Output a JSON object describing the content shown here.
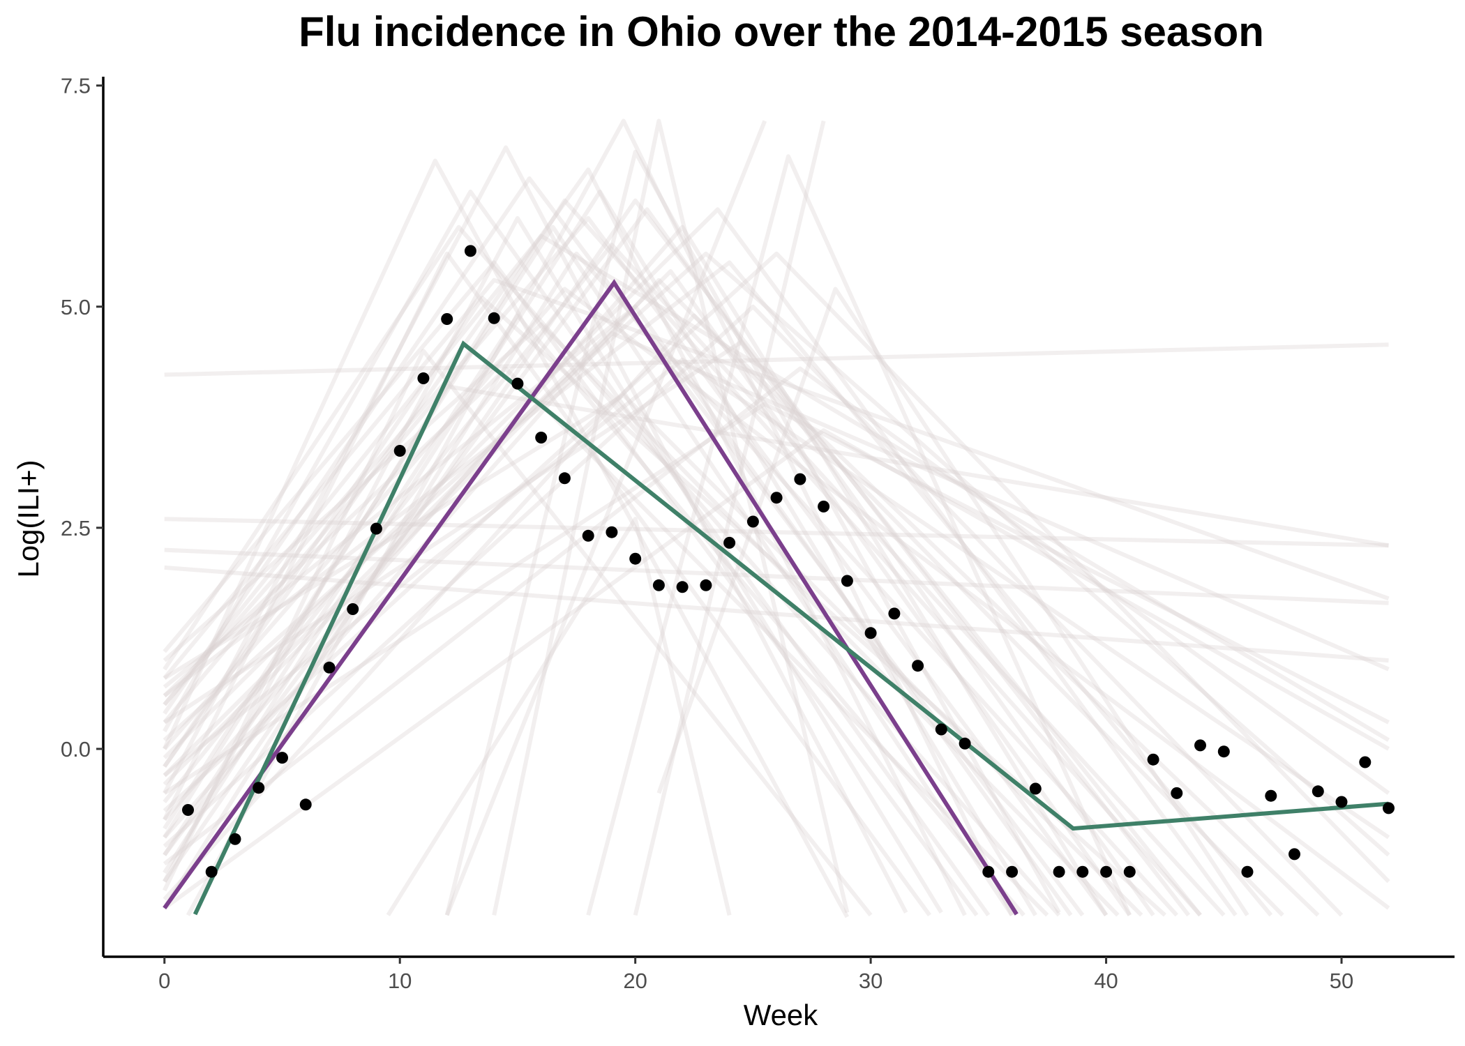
{
  "chart_data": {
    "type": "scatter",
    "title": "Flu incidence in Ohio over the 2014-2015 season",
    "xlabel": "Week",
    "ylabel": "Log(ILI+)",
    "xlim": [
      -2.6,
      54.8
    ],
    "ylim": [
      -2.35,
      7.6
    ],
    "x_ticks": [
      0,
      10,
      20,
      30,
      40,
      50
    ],
    "y_ticks": [
      0,
      2.5,
      5,
      7.5
    ],
    "x_tick_labels": [
      "0",
      "10",
      "20",
      "30",
      "40",
      "50"
    ],
    "y_tick_labels": [
      "0.0",
      "2.5",
      "5.0",
      "7.5"
    ],
    "grid": false,
    "legend": "none",
    "colors": {
      "points": "#000000",
      "fit_purple": "#7b3f8c",
      "fit_green": "#3f8068",
      "samples": "#d9d2d2"
    },
    "series": [
      {
        "type": "points",
        "x": [
          1,
          2,
          3,
          4,
          5,
          6,
          7,
          8,
          9,
          10,
          11,
          12,
          13,
          14,
          15,
          16,
          17,
          18,
          19,
          20,
          21,
          22,
          23,
          24,
          25,
          26,
          27,
          28,
          29,
          30,
          31,
          32,
          33,
          34,
          35,
          36,
          37,
          38,
          39,
          40,
          41,
          42,
          43,
          44,
          45,
          46,
          47,
          48,
          49,
          50,
          51,
          52
        ],
        "y": [
          -0.69,
          -1.39,
          -1.02,
          -0.44,
          -0.1,
          -0.63,
          0.92,
          1.58,
          2.49,
          3.37,
          4.19,
          4.86,
          5.63,
          4.87,
          4.13,
          3.52,
          3.06,
          2.41,
          2.45,
          2.15,
          1.85,
          1.83,
          1.85,
          2.33,
          2.57,
          2.84,
          3.05,
          2.74,
          1.9,
          1.31,
          1.53,
          0.94,
          0.22,
          0.06,
          -1.39,
          -1.39,
          -0.45,
          -1.39,
          -1.39,
          -1.39,
          -1.39,
          -0.12,
          -0.5,
          0.04,
          -0.03,
          -1.39,
          -0.53,
          -1.19,
          -0.48,
          -0.6,
          -0.15,
          -0.67
        ]
      },
      {
        "type": "line",
        "x": [
          0,
          19.1,
          36.2
        ],
        "y": [
          -1.8,
          5.27,
          -1.87
        ]
      },
      {
        "type": "line",
        "x": [
          1.3,
          12.7,
          38.6,
          52
        ],
        "y": [
          -1.87,
          4.58,
          -0.9,
          -0.62
        ]
      },
      {
        "type": "sample_lines",
        "lines": [
          {
            "x": [
              0,
              52
            ],
            "y": [
              4.23,
              4.57
            ]
          },
          {
            "x": [
              0,
              52
            ],
            "y": [
              2.6,
              2.3
            ]
          },
          {
            "x": [
              0,
              52
            ],
            "y": [
              2.25,
              1.65
            ]
          },
          {
            "x": [
              0,
              52
            ],
            "y": [
              2.05,
              1.0
            ]
          },
          {
            "x": [
              0,
              12,
              52
            ],
            "y": [
              0.3,
              4.1,
              2.3
            ]
          },
          {
            "x": [
              0,
              14,
              52
            ],
            "y": [
              0.8,
              5.3,
              1.7
            ]
          },
          {
            "x": [
              0,
              16,
              52
            ],
            "y": [
              0.5,
              5.8,
              0.1
            ]
          },
          {
            "x": [
              0,
              11.5,
              29
            ],
            "y": [
              0.0,
              6.65,
              -1.9
            ]
          },
          {
            "x": [
              0,
              14.5,
              31.5
            ],
            "y": [
              -0.5,
              6.8,
              -1.85
            ]
          },
          {
            "x": [
              0,
              18,
              34
            ],
            "y": [
              -0.2,
              6.55,
              -1.88
            ]
          },
          {
            "x": [
              1,
              19.5,
              36
            ],
            "y": [
              -1.88,
              7.1,
              -1.88
            ]
          },
          {
            "x": [
              9.5,
              20,
              24
            ],
            "y": [
              -1.88,
              2.6,
              -1.88
            ]
          },
          {
            "x": [
              12,
              20,
              38
            ],
            "y": [
              -1.88,
              6.75,
              -1.85
            ]
          },
          {
            "x": [
              12,
              25.5
            ],
            "y": [
              -1.88,
              7.1
            ]
          },
          {
            "x": [
              14,
              21,
              29
            ],
            "y": [
              -1.88,
              7.1,
              -1.85
            ]
          },
          {
            "x": [
              18,
              26.5,
              41
            ],
            "y": [
              -1.88,
              6.7,
              -1.88
            ]
          },
          {
            "x": [
              20,
              28
            ],
            "y": [
              -1.88,
              7.1
            ]
          },
          {
            "x": [
              21,
              28.5,
              46
            ],
            "y": [
              -0.5,
              5.2,
              -1.88
            ]
          },
          {
            "x": [
              0,
              17,
              44
            ],
            "y": [
              -1.0,
              6.2,
              -1.88
            ]
          },
          {
            "x": [
              0,
              13,
              35
            ],
            "y": [
              0.2,
              6.3,
              -1.88
            ]
          },
          {
            "x": [
              0,
              22,
              40
            ],
            "y": [
              -0.8,
              5.9,
              -1.88
            ]
          },
          {
            "x": [
              0,
              20.5,
              42
            ],
            "y": [
              -1.2,
              6.1,
              -1.88
            ]
          },
          {
            "x": [
              0,
              15,
              33
            ],
            "y": [
              -1.5,
              6.0,
              -1.85
            ]
          },
          {
            "x": [
              0,
              24,
              47
            ],
            "y": [
              0.6,
              5.5,
              -1.88
            ]
          },
          {
            "x": [
              0,
              19,
              45
            ],
            "y": [
              -0.6,
              5.7,
              -1.88
            ]
          },
          {
            "x": [
              0,
              12.5,
              38
            ],
            "y": [
              0.9,
              5.9,
              -1.88
            ]
          },
          {
            "x": [
              0,
              17.5,
              43
            ],
            "y": [
              -1.8,
              5.6,
              -1.88
            ]
          },
          {
            "x": [
              0,
              23,
              52
            ],
            "y": [
              0.1,
              5.6,
              -1.2
            ]
          },
          {
            "x": [
              0,
              15.5,
              39
            ],
            "y": [
              0.4,
              6.45,
              -1.88
            ]
          },
          {
            "x": [
              0,
              21.5,
              41
            ],
            "y": [
              -0.3,
              5.4,
              -1.88
            ]
          },
          {
            "x": [
              0,
              18.5,
              37
            ],
            "y": [
              -1.4,
              6.3,
              -1.88
            ]
          },
          {
            "x": [
              0,
              16.5,
              36
            ],
            "y": [
              -0.9,
              5.9,
              -1.88
            ]
          },
          {
            "x": [
              0,
              14,
              34.5
            ],
            "y": [
              1.1,
              5.5,
              -1.88
            ]
          },
          {
            "x": [
              0,
              25,
              50
            ],
            "y": [
              -1.1,
              5.0,
              -1.88
            ]
          },
          {
            "x": [
              0,
              13.5,
              42.5
            ],
            "y": [
              -0.2,
              5.1,
              -1.88
            ]
          },
          {
            "x": [
              0,
              20,
              38.5
            ],
            "y": [
              0.7,
              5.0,
              -1.88
            ]
          },
          {
            "x": [
              0,
              22.5,
              49
            ],
            "y": [
              -1.7,
              4.9,
              -1.88
            ]
          },
          {
            "x": [
              0,
              16,
              40.5
            ],
            "y": [
              1.0,
              4.8,
              -1.88
            ]
          },
          {
            "x": [
              0,
              27,
              52
            ],
            "y": [
              -1.3,
              4.3,
              -0.5
            ]
          },
          {
            "x": [
              0,
              11,
              30
            ],
            "y": [
              -1.6,
              4.5,
              -1.88
            ]
          },
          {
            "x": [
              0,
              19,
              52
            ],
            "y": [
              -0.4,
              4.7,
              0.9
            ]
          },
          {
            "x": [
              0,
              24.5,
              44
            ],
            "y": [
              0.3,
              4.6,
              -1.88
            ]
          },
          {
            "x": [
              0,
              17,
              52
            ],
            "y": [
              0.0,
              5.2,
              -1.8
            ]
          },
          {
            "x": [
              0,
              21,
              47.5
            ],
            "y": [
              -1.0,
              5.3,
              -1.88
            ]
          },
          {
            "x": [
              0,
              26,
              52
            ],
            "y": [
              -0.7,
              5.6,
              -1.5
            ]
          },
          {
            "x": [
              0,
              18,
              40
            ],
            "y": [
              0.5,
              6.0,
              -1.88
            ]
          },
          {
            "x": [
              0,
              15,
              36.5
            ],
            "y": [
              -1.2,
              4.9,
              -1.88
            ]
          },
          {
            "x": [
              0,
              23.5,
              45.5
            ],
            "y": [
              -0.1,
              6.1,
              -1.88
            ]
          },
          {
            "x": [
              0,
              20,
              43.5
            ],
            "y": [
              -1.5,
              6.2,
              -1.88
            ]
          },
          {
            "x": [
              0,
              12,
              32.5
            ],
            "y": [
              -0.8,
              5.6,
              -1.88
            ]
          },
          {
            "x": [
              0,
              22,
              52
            ],
            "y": [
              -0.3,
              4.4,
              -1.0
            ]
          },
          {
            "x": [
              0,
              28,
              52
            ],
            "y": [
              -1.8,
              3.6,
              0.0
            ]
          },
          {
            "x": [
              0,
              14.5,
              37.5
            ],
            "y": [
              0.6,
              4.3,
              -1.88
            ]
          },
          {
            "x": [
              0,
              19.5,
              41.5
            ],
            "y": [
              0.8,
              4.0,
              -1.88
            ]
          },
          {
            "x": [
              0,
              25.5,
              52
            ],
            "y": [
              -0.5,
              3.9,
              0.3
            ]
          }
        ]
      }
    ]
  }
}
